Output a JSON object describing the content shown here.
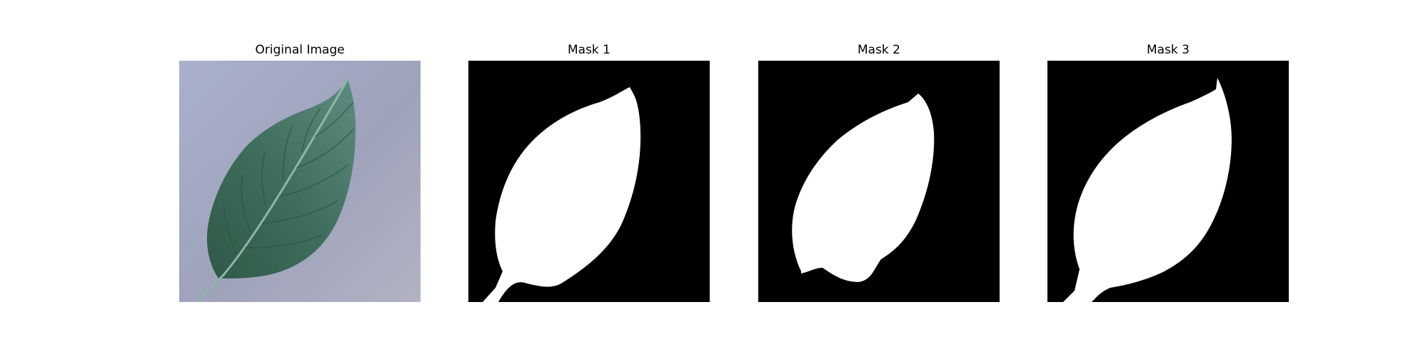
{
  "figure": {
    "panels": [
      {
        "title": "Original Image",
        "kind": "photo"
      },
      {
        "title": "Mask 1",
        "kind": "mask"
      },
      {
        "title": "Mask 2",
        "kind": "mask"
      },
      {
        "title": "Mask 3",
        "kind": "mask"
      }
    ]
  },
  "colors": {
    "background": "#ffffff",
    "photo_background": "#a3a9c2",
    "leaf": "#4d7a6b",
    "leaf_dark": "#2f5948",
    "mask_background": "#000000",
    "mask_foreground": "#ffffff"
  }
}
